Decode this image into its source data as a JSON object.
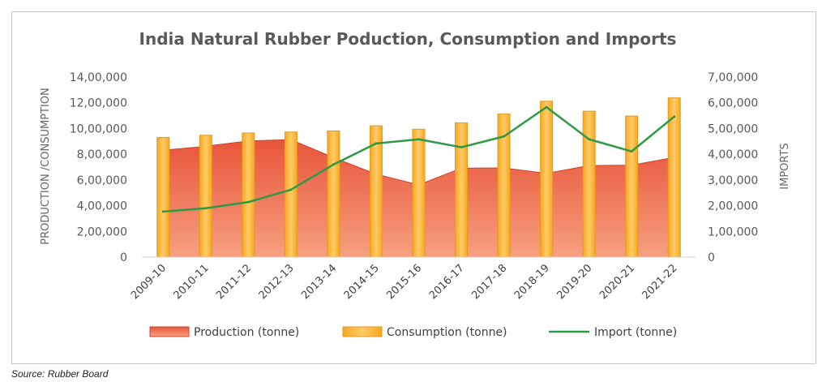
{
  "chart_data": {
    "type": "bar",
    "title": "India Natural Rubber Poduction, Consumption and Imports",
    "ylabel": "PRODUCTION /CONSUMPTION",
    "y2label": "IMPORTS",
    "ylim": [
      0,
      1400000
    ],
    "y2lim": [
      0,
      700000
    ],
    "yticks": [
      "0",
      "2,00,000",
      "4,00,000",
      "6,00,000",
      "8,00,000",
      "10,00,000",
      "12,00,000",
      "14,00,000"
    ],
    "y2ticks": [
      "0",
      "1,00,000",
      "2,00,000",
      "3,00,000",
      "4,00,000",
      "5,00,000",
      "6,00,000",
      "7,00,000"
    ],
    "categories": [
      "2009-10",
      "2010-11",
      "2011-12",
      "2012-13",
      "2013-14",
      "2014-15",
      "2015-16",
      "2016-17",
      "2017-18",
      "2018-19",
      "2019-20",
      "2020-21",
      "2021-22"
    ],
    "series": [
      {
        "name": "Production (tonne)",
        "type": "area",
        "axis": "left",
        "color": "#f0704a",
        "values": [
          831400,
          861950,
          903700,
          913700,
          774000,
          645000,
          562000,
          691000,
          694000,
          651000,
          712000,
          715000,
          775000
        ]
      },
      {
        "name": "Consumption (tonne)",
        "type": "bar",
        "axis": "left",
        "color": "#ffc04d",
        "values": [
          930565,
          947715,
          965000,
          972705,
          981520,
          1020910,
          994355,
          1044075,
          1112210,
          1211940,
          1134415,
          1096410,
          1238000
        ]
      },
      {
        "name": "Import (tonne)",
        "type": "line",
        "axis": "right",
        "color": "#2e9a45",
        "values": [
          177000,
          190000,
          214000,
          262000,
          360000,
          442000,
          458000,
          427000,
          469000,
          583000,
          458000,
          411000,
          546000
        ]
      }
    ],
    "legend": "bottom",
    "grid": false
  },
  "source": "Source:  Rubber  Board"
}
